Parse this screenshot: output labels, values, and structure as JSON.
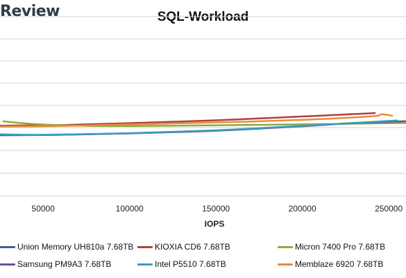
{
  "brand": {
    "text": "Review"
  },
  "chart_data": {
    "type": "line",
    "title": "SQL-Workload",
    "xlabel": "IOPS",
    "ylabel": "",
    "xlim": [
      25000,
      260000
    ],
    "x_ticks": [
      "50000",
      "100000",
      "150000",
      "200000",
      "250000"
    ],
    "y_ticks": [],
    "grid": "horizontal",
    "legend_position": "bottom",
    "series": [
      {
        "name": "Union Memory UH810a 7.68TB",
        "color": "#3b5ba5",
        "points": [
          [
            25000,
            0.66
          ],
          [
            60000,
            0.658
          ],
          [
            100000,
            0.65
          ],
          [
            150000,
            0.635
          ],
          [
            200000,
            0.61
          ],
          [
            230000,
            0.592
          ],
          [
            253000,
            0.585
          ]
        ]
      },
      {
        "name": "KIOXIA CD6 7.68TB",
        "color": "#b2403c",
        "points": [
          [
            25000,
            0.607
          ],
          [
            60000,
            0.604
          ],
          [
            100000,
            0.593
          ],
          [
            150000,
            0.577
          ],
          [
            200000,
            0.556
          ],
          [
            242000,
            0.537
          ]
        ]
      },
      {
        "name": "Micron 7400 Pro 7.68TB",
        "color": "#8aac3e",
        "points": [
          [
            27000,
            0.583
          ],
          [
            40000,
            0.595
          ],
          [
            55000,
            0.603
          ],
          [
            75000,
            0.608
          ],
          [
            100000,
            0.609
          ],
          [
            150000,
            0.605
          ],
          [
            200000,
            0.6
          ],
          [
            260000,
            0.592
          ]
        ]
      },
      {
        "name": "Samsung PM9A3 7.68TB",
        "color": "#6c4f96",
        "points": [
          [
            25000,
            0.66
          ],
          [
            60000,
            0.658
          ],
          [
            100000,
            0.65
          ],
          [
            150000,
            0.635
          ],
          [
            200000,
            0.61
          ],
          [
            230000,
            0.593
          ],
          [
            260000,
            0.582
          ]
        ]
      },
      {
        "name": "Intel P5510 7.68TB",
        "color": "#3a9ebf",
        "points": [
          [
            25000,
            0.655
          ],
          [
            50000,
            0.658
          ],
          [
            100000,
            0.649
          ],
          [
            150000,
            0.633
          ],
          [
            200000,
            0.608
          ],
          [
            230000,
            0.592
          ],
          [
            255000,
            0.578
          ]
        ]
      },
      {
        "name": "Memblaze 6920 7.68TB",
        "color": "#e88c3a",
        "points": [
          [
            25000,
            0.612
          ],
          [
            60000,
            0.609
          ],
          [
            100000,
            0.6
          ],
          [
            150000,
            0.589
          ],
          [
            200000,
            0.575
          ],
          [
            240000,
            0.555
          ],
          [
            246000,
            0.544
          ],
          [
            252000,
            0.552
          ]
        ]
      }
    ]
  }
}
